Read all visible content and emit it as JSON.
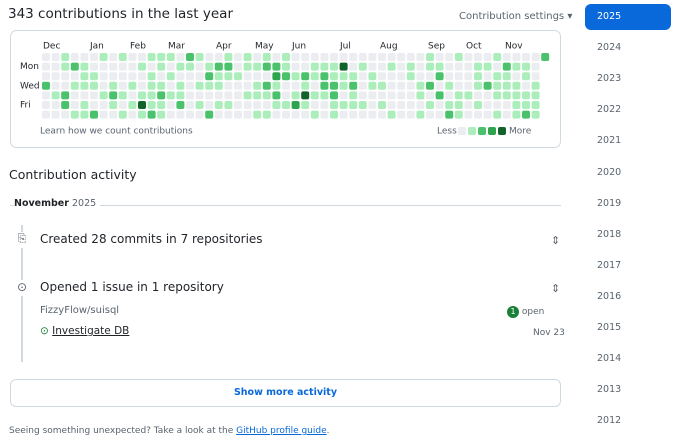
{
  "header": {
    "title": "343 contributions in the last year",
    "settings": "Contribution settings"
  },
  "graph": {
    "months": [
      "Dec",
      "Jan",
      "Feb",
      "Mar",
      "Apr",
      "May",
      "Jun",
      "Jul",
      "Aug",
      "Sep",
      "Oct",
      "Nov"
    ],
    "days": [
      "Mon",
      "Wed",
      "Fri"
    ],
    "learn": "Learn how we count contributions",
    "less": "Less",
    "more": "More",
    "level_colors": [
      "#ebedf0",
      "#aceebb",
      "#4ac26b",
      "#2da44e",
      "#116329"
    ],
    "weeks": [
      [
        0,
        0,
        0,
        2,
        0,
        0,
        0
      ],
      [
        0,
        0,
        0,
        0,
        1,
        0,
        0
      ],
      [
        1,
        1,
        0,
        0,
        2,
        2,
        0
      ],
      [
        0,
        2,
        0,
        1,
        0,
        0,
        1
      ],
      [
        0,
        1,
        1,
        1,
        0,
        1,
        1
      ],
      [
        0,
        0,
        1,
        1,
        0,
        0,
        2
      ],
      [
        1,
        0,
        0,
        0,
        1,
        0,
        0
      ],
      [
        0,
        0,
        0,
        1,
        2,
        1,
        0
      ],
      [
        1,
        0,
        0,
        0,
        1,
        0,
        1
      ],
      [
        0,
        0,
        0,
        1,
        0,
        1,
        0
      ],
      [
        0,
        1,
        0,
        0,
        1,
        4,
        1
      ],
      [
        1,
        0,
        1,
        1,
        1,
        1,
        2
      ],
      [
        1,
        1,
        0,
        1,
        2,
        1,
        1
      ],
      [
        1,
        0,
        1,
        0,
        1,
        0,
        0
      ],
      [
        0,
        1,
        0,
        1,
        1,
        2,
        0
      ],
      [
        2,
        1,
        0,
        0,
        0,
        0,
        0
      ],
      [
        1,
        0,
        0,
        1,
        0,
        1,
        0
      ],
      [
        0,
        1,
        2,
        1,
        0,
        0,
        2
      ],
      [
        0,
        2,
        1,
        1,
        0,
        1,
        0
      ],
      [
        1,
        2,
        1,
        0,
        0,
        1,
        0
      ],
      [
        0,
        0,
        1,
        0,
        0,
        0,
        0
      ],
      [
        1,
        1,
        0,
        0,
        1,
        0,
        0
      ],
      [
        0,
        1,
        0,
        1,
        1,
        0,
        1
      ],
      [
        1,
        2,
        0,
        2,
        1,
        0,
        1
      ],
      [
        0,
        2,
        3,
        1,
        2,
        1,
        0
      ],
      [
        1,
        1,
        2,
        0,
        0,
        1,
        0
      ],
      [
        0,
        0,
        1,
        0,
        1,
        3,
        0
      ],
      [
        0,
        0,
        2,
        1,
        4,
        1,
        0
      ],
      [
        0,
        1,
        1,
        0,
        1,
        0,
        1
      ],
      [
        0,
        1,
        2,
        2,
        1,
        0,
        0
      ],
      [
        0,
        1,
        1,
        2,
        2,
        1,
        1
      ],
      [
        0,
        4,
        1,
        1,
        0,
        1,
        0
      ],
      [
        0,
        0,
        1,
        2,
        1,
        1,
        0
      ],
      [
        0,
        1,
        0,
        0,
        0,
        1,
        0
      ],
      [
        0,
        0,
        1,
        1,
        0,
        0,
        0
      ],
      [
        0,
        0,
        0,
        1,
        0,
        1,
        0
      ],
      [
        0,
        1,
        0,
        0,
        0,
        0,
        1
      ],
      [
        0,
        0,
        0,
        0,
        0,
        0,
        0
      ],
      [
        0,
        1,
        1,
        0,
        0,
        0,
        0
      ],
      [
        0,
        0,
        0,
        1,
        1,
        0,
        1
      ],
      [
        1,
        1,
        0,
        2,
        0,
        1,
        0
      ],
      [
        0,
        1,
        2,
        0,
        2,
        0,
        0
      ],
      [
        0,
        0,
        0,
        1,
        0,
        1,
        2
      ],
      [
        1,
        0,
        0,
        0,
        1,
        1,
        1
      ],
      [
        0,
        0,
        0,
        0,
        1,
        0,
        0
      ],
      [
        0,
        1,
        1,
        1,
        0,
        1,
        0
      ],
      [
        0,
        1,
        0,
        2,
        0,
        0,
        0
      ],
      [
        1,
        0,
        1,
        1,
        1,
        0,
        1
      ],
      [
        0,
        2,
        1,
        1,
        1,
        0,
        0
      ],
      [
        0,
        1,
        0,
        1,
        1,
        1,
        1
      ],
      [
        0,
        1,
        1,
        0,
        1,
        1,
        2
      ],
      [
        0,
        0,
        0,
        1,
        1,
        1,
        1
      ],
      [
        2,
        null,
        null,
        null,
        null,
        null,
        null
      ]
    ]
  },
  "activity": {
    "title": "Contribution activity",
    "month": "November",
    "year": "2025",
    "commits": "Created 28 commits in 7 repositories",
    "issues": "Opened 1 issue in 1 repository",
    "repo": "FizzyFlow/suisql",
    "open_count": "1",
    "open_label": "open",
    "issue_title": "Investigate DB",
    "issue_date": "Nov 23",
    "more": "Show more activity"
  },
  "footer": {
    "text": "Seeing something unexpected? Take a look at the ",
    "link": "GitHub profile guide",
    "end": "."
  },
  "years": [
    "2025",
    "2024",
    "2023",
    "2022",
    "2021",
    "2020",
    "2019",
    "2018",
    "2017",
    "2016",
    "2015",
    "2014",
    "2013",
    "2012"
  ]
}
